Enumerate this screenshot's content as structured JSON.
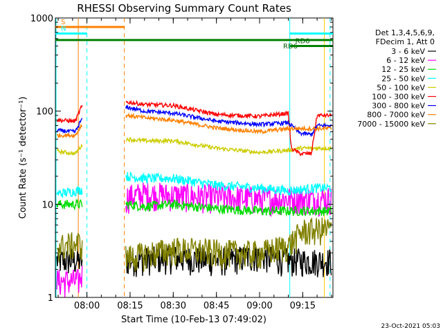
{
  "chart_data": {
    "type": "line",
    "title": "RHESSI Observing Summary Count Rates",
    "xlabel": "Start Time (10-Feb-13 07:49:02)",
    "ylabel": "Count Rate (s⁻¹ detector⁻¹)",
    "y_scale": "log",
    "ylim": [
      1,
      1000
    ],
    "xlim": [
      "07:49:02",
      "09:25:30"
    ],
    "x_ticks": [
      "08:00",
      "08:15",
      "08:30",
      "08:45",
      "09:00",
      "09:15"
    ],
    "y_ticks": [
      "1",
      "10",
      "100",
      "1000"
    ],
    "legend_header": [
      "Det 1,3,4,5,6,9,",
      "FDecim 1, Att 0"
    ],
    "footer_date": "23-Oct-2021 05:03",
    "grid": false,
    "legend_position": "right",
    "series": [
      {
        "name": "3 - 6 keV",
        "color": "#000000",
        "x": [
          "08:14",
          "08:30",
          "08:45",
          "09:00",
          "09:10"
        ],
        "values": [
          2.5,
          2.7,
          2.5,
          2.8,
          2.5
        ]
      },
      {
        "name": "6 - 12 keV",
        "color": "#ff00ff",
        "x": [
          "07:50",
          "07:57",
          "08:14",
          "08:20",
          "08:30",
          "08:45",
          "09:00",
          "09:10"
        ],
        "values": [
          1.5,
          1.5,
          12,
          13,
          12.5,
          12,
          11.5,
          11.5
        ]
      },
      {
        "name": "12 - 25 keV",
        "color": "#00dd00",
        "x": [
          "08:14",
          "08:20",
          "08:30",
          "08:45",
          "09:00",
          "09:10"
        ],
        "values": [
          10,
          9.5,
          10,
          9,
          8.5,
          8.5
        ]
      },
      {
        "name": "25 - 50 keV",
        "color": "#00ffff",
        "x": [
          "07:50",
          "07:57",
          "08:14",
          "08:20",
          "08:30",
          "08:45",
          "09:00",
          "09:10",
          "09:20",
          "09:25"
        ],
        "values": [
          13,
          14,
          20,
          19,
          19,
          16,
          15,
          14,
          15,
          15
        ]
      },
      {
        "name": "50 - 100 keV",
        "color": "#cccc00",
        "x": [
          "07:50",
          "07:56",
          "07:58",
          "08:14",
          "08:20",
          "08:30",
          "08:45",
          "09:00",
          "09:10",
          "09:14",
          "09:18",
          "09:25"
        ],
        "values": [
          37,
          35,
          42,
          50,
          48,
          48,
          40,
          36,
          38,
          40,
          40,
          40
        ]
      },
      {
        "name": "100 - 300 keV",
        "color": "#ff0000",
        "x": [
          "07:50",
          "07:56",
          "07:58",
          "08:14",
          "08:20",
          "08:30",
          "08:45",
          "09:00",
          "09:10",
          "09:11",
          "09:14",
          "09:18",
          "09:20",
          "09:25"
        ],
        "values": [
          80,
          78,
          110,
          125,
          118,
          115,
          92,
          88,
          95,
          40,
          35,
          35,
          90,
          90
        ]
      },
      {
        "name": "300 - 800 keV",
        "color": "#0000ff",
        "x": [
          "07:50",
          "07:56",
          "07:58",
          "08:14",
          "08:20",
          "08:30",
          "08:45",
          "09:00",
          "09:10",
          "09:14",
          "09:18",
          "09:20",
          "09:25"
        ],
        "values": [
          62,
          60,
          80,
          110,
          100,
          95,
          78,
          72,
          75,
          58,
          56,
          70,
          70
        ]
      },
      {
        "name": "800 - 7000 keV",
        "color": "#ff8000",
        "x": [
          "07:50",
          "07:56",
          "07:58",
          "08:14",
          "08:20",
          "08:30",
          "08:45",
          "09:00",
          "09:10",
          "09:14",
          "09:18",
          "09:25"
        ],
        "values": [
          55,
          55,
          70,
          90,
          85,
          80,
          66,
          60,
          65,
          65,
          65,
          65
        ]
      },
      {
        "name": "7000 - 15000 keV",
        "color": "#808000",
        "x": [
          "07:50",
          "07:57",
          "08:14",
          "08:30",
          "08:45",
          "09:00",
          "09:10",
          "09:15",
          "09:25"
        ],
        "values": [
          3.5,
          3.8,
          2.7,
          3.3,
          3.1,
          3.0,
          3.6,
          5.2,
          5.5
        ]
      }
    ],
    "annotations": [
      {
        "label": "S",
        "color": "#ff8000",
        "start": "07:49:02",
        "end": "08:13:00",
        "level": 800
      },
      {
        "label": "N",
        "color": "#00ffff",
        "start": "07:49:02",
        "end": "08:00:00",
        "level": 680
      },
      {
        "label": "RD6",
        "color": "#008000",
        "start": "07:49:02",
        "end": "09:25:30",
        "level": 580
      },
      {
        "label": "RD0",
        "color": "#008000",
        "start": "09:10:30",
        "end": "09:25:30",
        "level": 500
      },
      {
        "label": "",
        "color": "#00ffff",
        "start": "09:10:30",
        "end": "09:25:30",
        "level": 680
      }
    ]
  }
}
